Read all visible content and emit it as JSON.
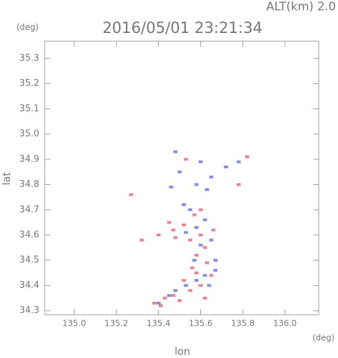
{
  "chart_data": {
    "type": "scatter",
    "title": "2016/05/01 23:21:34",
    "subtitle": "ALT(km) 2.0",
    "x_label": "lon",
    "y_label": "lat",
    "x_unit": "(deg)",
    "y_unit": "(deg)",
    "xlim": [
      134.86,
      136.16
    ],
    "ylim": [
      34.284,
      35.368
    ],
    "xticks": [
      {
        "value": 135,
        "label": "135.0"
      },
      135.2,
      135.4,
      135.6,
      135.8,
      {
        "value": 136,
        "label": "136.0"
      }
    ],
    "yticks": [
      34.3,
      34.4,
      34.5,
      34.6,
      34.7,
      34.8,
      34.9,
      {
        "value": 35,
        "label": "35.0"
      },
      35.1,
      35.2,
      35.3
    ],
    "series": [
      {
        "color": "#f06070",
        "x": [
          135.82,
          135.27,
          135.78,
          135.45,
          135.52,
          135.6,
          135.55,
          135.48,
          135.62,
          135.58,
          135.63,
          135.56,
          135.52,
          135.6,
          135.55,
          135.47,
          135.43,
          135.38,
          135.41,
          135.5,
          135.65,
          135.57,
          135.47,
          135.4,
          135.32,
          135.6,
          135.53,
          135.66,
          135.58,
          135.62
        ],
        "y": [
          34.91,
          34.76,
          34.8,
          34.65,
          34.64,
          34.6,
          34.58,
          34.59,
          34.55,
          34.52,
          34.49,
          34.47,
          34.42,
          34.4,
          34.38,
          34.36,
          34.35,
          34.33,
          34.32,
          34.34,
          34.44,
          34.68,
          34.62,
          34.6,
          34.58,
          34.7,
          34.9,
          34.62,
          34.45,
          34.35
        ]
      },
      {
        "color": "#6070f0",
        "x": [
          135.78,
          135.48,
          135.6,
          135.5,
          135.65,
          135.55,
          135.62,
          135.58,
          135.53,
          135.65,
          135.6,
          135.57,
          135.67,
          135.62,
          135.58,
          135.53,
          135.48,
          135.45,
          135.4,
          135.67,
          135.64,
          135.72,
          135.63,
          135.58,
          135.46,
          135.52
        ],
        "y": [
          34.89,
          34.93,
          34.89,
          34.85,
          34.83,
          34.7,
          34.66,
          34.63,
          34.61,
          34.58,
          34.56,
          34.5,
          34.46,
          34.44,
          34.42,
          34.4,
          34.38,
          34.36,
          34.33,
          34.5,
          34.4,
          34.87,
          34.78,
          34.8,
          34.79,
          34.72
        ]
      }
    ]
  }
}
